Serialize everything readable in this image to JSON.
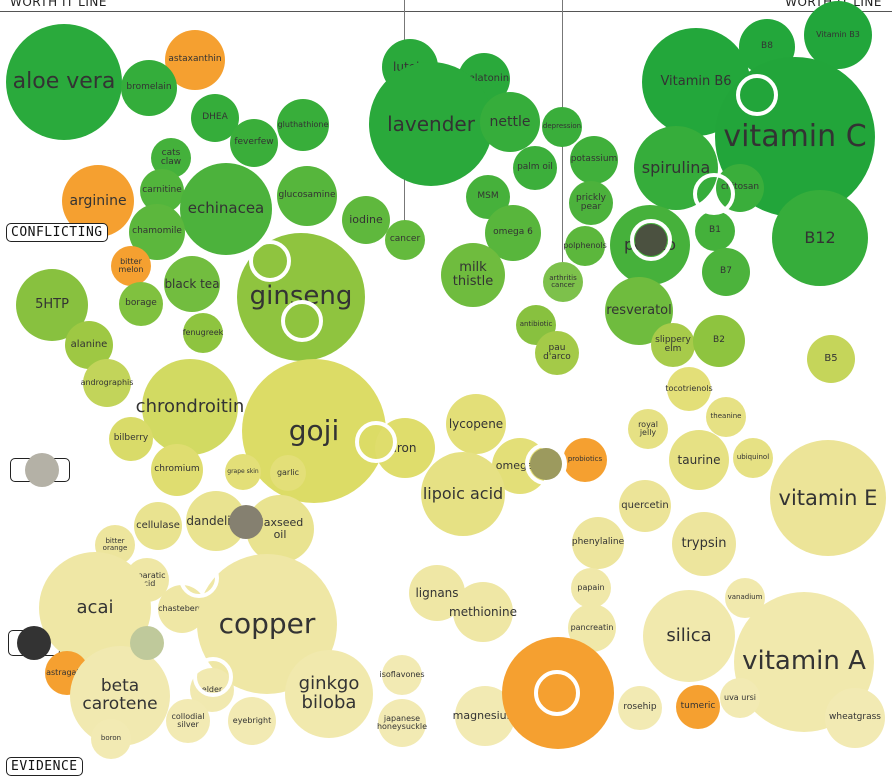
{
  "header": {
    "left": "WORTH IT LINE",
    "right": "WORTH IT LINE"
  },
  "tags": {
    "conflicting": "CONFLICTING",
    "evidence": "EVIDENCE"
  },
  "chart_data": {
    "type": "bubble",
    "color_scale": {
      "strong_evidence": "#2aac3b",
      "weak_evidence": "#f3eec0",
      "orange_highlight": "#f5a030"
    },
    "bubbles": [
      {
        "label": "aloe vera",
        "popularity": 60,
        "evidence": 0.95,
        "color": "#2aaa3c"
      },
      {
        "label": "astaxanthin",
        "popularity": 30,
        "evidence": 0.93,
        "color": "#f5a030"
      },
      {
        "label": "bromelain",
        "popularity": 28,
        "evidence": 0.9,
        "color": "#34ad3b"
      },
      {
        "label": "DHEA",
        "popularity": 24,
        "evidence": 0.86,
        "color": "#35ad3a"
      },
      {
        "label": "gluthathione",
        "popularity": 26,
        "evidence": 0.87,
        "color": "#38ae3a"
      },
      {
        "label": "feverfew",
        "popularity": 24,
        "evidence": 0.84,
        "color": "#3aae3a"
      },
      {
        "label": "cats\nclaw",
        "popularity": 20,
        "evidence": 0.81,
        "color": "#44b13b"
      },
      {
        "label": "carnitine",
        "popularity": 22,
        "evidence": 0.77,
        "color": "#52b53c"
      },
      {
        "label": "echinacea",
        "popularity": 46,
        "evidence": 0.75,
        "color": "#4cb23c"
      },
      {
        "label": "glucosamine",
        "popularity": 30,
        "evidence": 0.77,
        "color": "#56b63c"
      },
      {
        "label": "arginine",
        "popularity": 36,
        "evidence": 0.76,
        "color": "#f5a030"
      },
      {
        "label": "chamomile",
        "popularity": 28,
        "evidence": 0.71,
        "color": "#5cb73d"
      },
      {
        "label": "iodine",
        "popularity": 24,
        "evidence": 0.71,
        "color": "#5fb83d"
      },
      {
        "label": "cancer",
        "popularity": 20,
        "evidence": 0.69,
        "color": "#64ba3d"
      },
      {
        "label": "lutein",
        "popularity": 28,
        "evidence": 0.91,
        "color": "#2aa93b"
      },
      {
        "label": "melatonin",
        "popularity": 26,
        "evidence": 0.9,
        "color": "#2aa93b"
      },
      {
        "label": "lavender",
        "popularity": 62,
        "evidence": 0.84,
        "color": "#2aa93b"
      },
      {
        "label": "nettle",
        "popularity": 30,
        "evidence": 0.84,
        "color": "#36ad3b"
      },
      {
        "label": "depression",
        "popularity": 20,
        "evidence": 0.84,
        "color": "#3aae3b"
      },
      {
        "label": "potassium",
        "popularity": 24,
        "evidence": 0.79,
        "color": "#40b03b"
      },
      {
        "label": "palm oil",
        "popularity": 22,
        "evidence": 0.78,
        "color": "#3caf3b"
      },
      {
        "label": "MSM",
        "popularity": 22,
        "evidence": 0.75,
        "color": "#46b13b"
      },
      {
        "label": "prickly\npear",
        "popularity": 22,
        "evidence": 0.74,
        "color": "#4cb23c"
      },
      {
        "label": "omega 6",
        "popularity": 28,
        "evidence": 0.7,
        "color": "#58b63c"
      },
      {
        "label": "polphenols",
        "popularity": 20,
        "evidence": 0.69,
        "color": "#5cb73c"
      },
      {
        "label": "milk\nthistle",
        "popularity": 32,
        "evidence": 0.64,
        "color": "#6fbc3e"
      },
      {
        "label": "arthritis\ncancer",
        "popularity": 20,
        "evidence": 0.63,
        "color": "#7dc14b"
      },
      {
        "label": "Vitamin B3",
        "popularity": 34,
        "evidence": 0.96,
        "color": "#22a63b"
      },
      {
        "label": "B8",
        "popularity": 28,
        "evidence": 0.94,
        "color": "#23a73b"
      },
      {
        "label": "Vitamin B6",
        "popularity": 54,
        "evidence": 0.9,
        "color": "#23a73b"
      },
      {
        "label": "vitamin C",
        "popularity": 80,
        "evidence": 0.82,
        "color": "#22a53a"
      },
      {
        "label": "spirulina",
        "popularity": 42,
        "evidence": 0.78,
        "color": "#36ad3b"
      },
      {
        "label": "chitosan",
        "popularity": 24,
        "evidence": 0.76,
        "color": "#3aae3b"
      },
      {
        "label": "B12",
        "popularity": 48,
        "evidence": 0.69,
        "color": "#36ad3b"
      },
      {
        "label": "B1",
        "popularity": 20,
        "evidence": 0.7,
        "color": "#44b13b"
      },
      {
        "label": "potato",
        "popularity": 40,
        "evidence": 0.69,
        "color": "#46b13b"
      },
      {
        "label": "B7",
        "popularity": 24,
        "evidence": 0.65,
        "color": "#4cb33c"
      },
      {
        "label": "bitter\nmelon",
        "popularity": 20,
        "evidence": 0.66,
        "color": "#f5a030"
      },
      {
        "label": "ginseng",
        "popularity": 64,
        "evidence": 0.61,
        "color": "#8fc43f"
      },
      {
        "label": "black tea",
        "popularity": 28,
        "evidence": 0.63,
        "color": "#72bd3f"
      },
      {
        "label": "borage",
        "popularity": 22,
        "evidence": 0.6,
        "color": "#80c13f"
      },
      {
        "label": "5HTP",
        "popularity": 36,
        "evidence": 0.6,
        "color": "#88c13f"
      },
      {
        "label": "fenugreek",
        "popularity": 20,
        "evidence": 0.57,
        "color": "#8ec43f"
      },
      {
        "label": "alanine",
        "popularity": 24,
        "evidence": 0.55,
        "color": "#9ec843"
      },
      {
        "label": "antibiotic",
        "popularity": 20,
        "evidence": 0.58,
        "color": "#88c13f"
      },
      {
        "label": "pau\nd'arco",
        "popularity": 22,
        "evidence": 0.54,
        "color": "#a4ca48"
      },
      {
        "label": "resveratol",
        "popularity": 34,
        "evidence": 0.59,
        "color": "#6fbc3e"
      },
      {
        "label": "slippery\nelm",
        "popularity": 22,
        "evidence": 0.55,
        "color": "#a7cb4a"
      },
      {
        "label": "B2",
        "popularity": 26,
        "evidence": 0.56,
        "color": "#8ec43f"
      },
      {
        "label": "B5",
        "popularity": 24,
        "evidence": 0.53,
        "color": "#c5d55a"
      },
      {
        "label": "andrographis",
        "popularity": 24,
        "evidence": 0.51,
        "color": "#c2d45a"
      },
      {
        "label": "chrondroitin",
        "popularity": 48,
        "evidence": 0.47,
        "color": "#d2da62"
      },
      {
        "label": "goji",
        "popularity": 72,
        "evidence": 0.44,
        "color": "#dcdc66"
      },
      {
        "label": "iron",
        "popularity": 30,
        "evidence": 0.42,
        "color": "#dfdd6c"
      },
      {
        "label": "bilberry",
        "popularity": 22,
        "evidence": 0.43,
        "color": "#d9db69"
      },
      {
        "label": "chromium",
        "popularity": 26,
        "evidence": 0.39,
        "color": "#dfdd70"
      },
      {
        "label": "grape skin",
        "popularity": 18,
        "evidence": 0.39,
        "color": "#e3df78"
      },
      {
        "label": "garlic",
        "popularity": 18,
        "evidence": 0.39,
        "color": "#e3df78"
      },
      {
        "label": "lycopene",
        "popularity": 30,
        "evidence": 0.45,
        "color": "#e3df78"
      },
      {
        "label": "omega 3",
        "popularity": 28,
        "evidence": 0.4,
        "color": "#e3df78"
      },
      {
        "label": "probiotics",
        "popularity": 22,
        "evidence": 0.4,
        "color": "#f5a030"
      },
      {
        "label": "lipoic acid",
        "popularity": 42,
        "evidence": 0.36,
        "color": "#e6e184"
      },
      {
        "label": "tocotrienols",
        "popularity": 22,
        "evidence": 0.49,
        "color": "#e3df78"
      },
      {
        "label": "theanine",
        "popularity": 20,
        "evidence": 0.45,
        "color": "#e6e184"
      },
      {
        "label": "royal\njelly",
        "popularity": 20,
        "evidence": 0.44,
        "color": "#e6e184"
      },
      {
        "label": "taurine",
        "popularity": 30,
        "evidence": 0.4,
        "color": "#e6e184"
      },
      {
        "label": "ubiquinol",
        "popularity": 20,
        "evidence": 0.4,
        "color": "#e6e184"
      },
      {
        "label": "vitamin E",
        "popularity": 58,
        "evidence": 0.35,
        "color": "#ece498"
      },
      {
        "label": "quercetin",
        "popularity": 26,
        "evidence": 0.34,
        "color": "#ece498"
      },
      {
        "label": "trypsin",
        "popularity": 32,
        "evidence": 0.29,
        "color": "#ede59d"
      },
      {
        "label": "phenylaline",
        "popularity": 26,
        "evidence": 0.29,
        "color": "#ede59d"
      },
      {
        "label": "cellulase",
        "popularity": 24,
        "evidence": 0.31,
        "color": "#e9e390"
      },
      {
        "label": "dandelion",
        "popularity": 30,
        "evidence": 0.31,
        "color": "#e9e390"
      },
      {
        "label": "flaxseed\noil",
        "popularity": 34,
        "evidence": 0.3,
        "color": "#e9e390"
      },
      {
        "label": "bitter\norange",
        "popularity": 20,
        "evidence": 0.29,
        "color": "#ede59d"
      },
      {
        "label": "asparatic acid",
        "popularity": 22,
        "evidence": 0.24,
        "color": "#efe7a5"
      },
      {
        "label": "acai",
        "popularity": 56,
        "evidence": 0.2,
        "color": "#efe7a5"
      },
      {
        "label": "chasteberry",
        "popularity": 24,
        "evidence": 0.2,
        "color": "#efe7a5"
      },
      {
        "label": "copper",
        "popularity": 70,
        "evidence": 0.19,
        "color": "#efe7a5"
      },
      {
        "label": "lignans",
        "popularity": 28,
        "evidence": 0.22,
        "color": "#efe7a5"
      },
      {
        "label": "methionine",
        "popularity": 30,
        "evidence": 0.2,
        "color": "#efe7a5"
      },
      {
        "label": "papain",
        "popularity": 20,
        "evidence": 0.23,
        "color": "#f0e8a9"
      },
      {
        "label": "pancreatin",
        "popularity": 24,
        "evidence": 0.18,
        "color": "#f0e8a9"
      },
      {
        "label": "silica",
        "popularity": 46,
        "evidence": 0.17,
        "color": "#f1e9ad"
      },
      {
        "label": "vanadium",
        "popularity": 20,
        "evidence": 0.22,
        "color": "#f1e9ad"
      },
      {
        "label": "vitamin A",
        "popularity": 70,
        "evidence": 0.13,
        "color": "#f1e9ad"
      },
      {
        "label": "astragalus",
        "popularity": 22,
        "evidence": 0.12,
        "color": "#f5a030"
      },
      {
        "label": "beta\ncarotene",
        "popularity": 50,
        "evidence": 0.08,
        "color": "#f1e9b0"
      },
      {
        "label": "elder",
        "popularity": 22,
        "evidence": 0.11,
        "color": "#f1e9b0"
      },
      {
        "label": "collodial\nsilver",
        "popularity": 22,
        "evidence": 0.06,
        "color": "#f2eab3"
      },
      {
        "label": "eyebright",
        "popularity": 24,
        "evidence": 0.06,
        "color": "#f2eab3"
      },
      {
        "label": "boron",
        "popularity": 20,
        "evidence": 0.03,
        "color": "#f2eab3"
      },
      {
        "label": "ginkgo\nbiloba",
        "popularity": 44,
        "evidence": 0.1,
        "color": "#f1e9ad"
      },
      {
        "label": "isoflavones",
        "popularity": 20,
        "evidence": 0.12,
        "color": "#f2eab3"
      },
      {
        "label": "japanese\nhoneysuckle",
        "popularity": 24,
        "evidence": 0.06,
        "color": "#f2eab3"
      },
      {
        "label": "magnesium",
        "popularity": 30,
        "evidence": 0.06,
        "color": "#f2eab3"
      },
      {
        "label": "",
        "popularity": 56,
        "evidence": 0.09,
        "color": "#f5a030"
      },
      {
        "label": "rosehip",
        "popularity": 22,
        "evidence": 0.08,
        "color": "#f2eab3"
      },
      {
        "label": "tumeric",
        "popularity": 22,
        "evidence": 0.08,
        "color": "#f5a030"
      },
      {
        "label": "uva ursi",
        "popularity": 20,
        "evidence": 0.09,
        "color": "#f2eab3"
      },
      {
        "label": "wheatgrass",
        "popularity": 30,
        "evidence": 0.06,
        "color": "#f2eab3"
      }
    ]
  },
  "markers": {
    "ring_color": "#ffffff",
    "dots": [
      {
        "name": "dark-green-dot",
        "color": "#4b5140"
      },
      {
        "name": "olive-dot",
        "color": "#9c9a5e"
      },
      {
        "name": "gray-taupe-dot",
        "color": "#858070"
      },
      {
        "name": "light-gray-dot",
        "color": "#b4b1a6"
      },
      {
        "name": "charcoal-dot",
        "color": "#333333"
      },
      {
        "name": "sage-dot",
        "color": "#bfc99b"
      }
    ]
  }
}
